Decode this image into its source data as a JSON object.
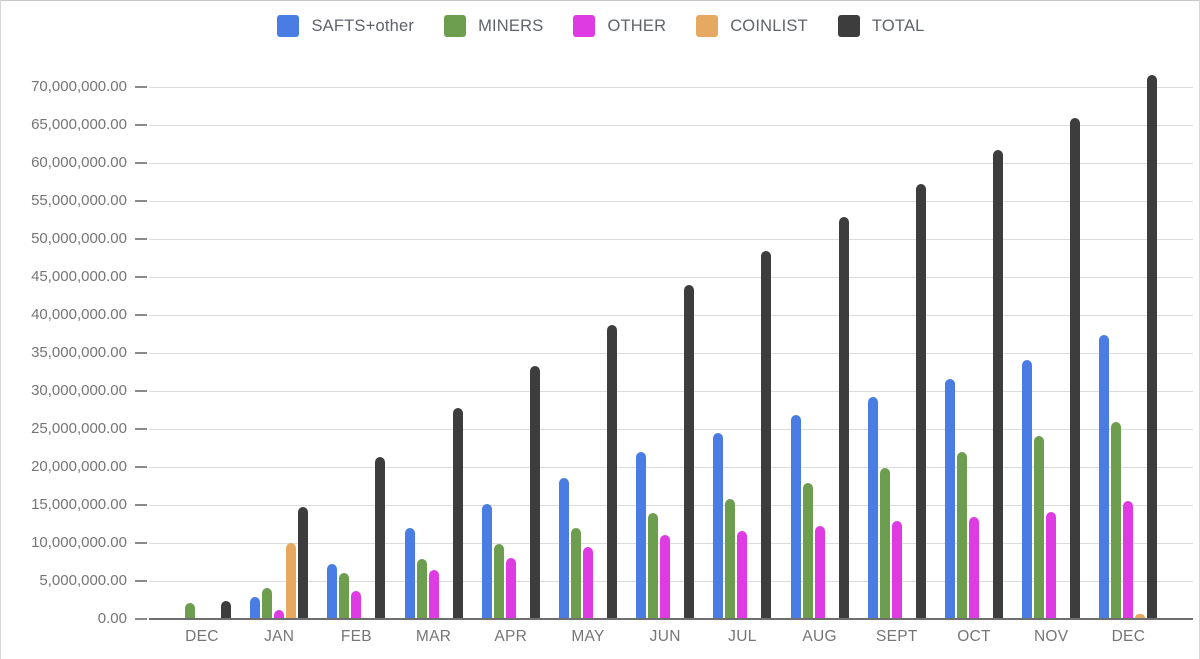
{
  "chart_data": {
    "type": "bar",
    "title": "",
    "xlabel": "",
    "ylabel": "",
    "grid": true,
    "legend_position": "top",
    "ylim": [
      0,
      70000000
    ],
    "ytick_step": 5000000,
    "ytick_labels": [
      "0.00",
      "5,000,000.00",
      "10,000,000.00",
      "15,000,000.00",
      "20,000,000.00",
      "25,000,000.00",
      "30,000,000.00",
      "35,000,000.00",
      "40,000,000.00",
      "45,000,000.00",
      "50,000,000.00",
      "55,000,000.00",
      "60,000,000.00",
      "65,000,000.00",
      "70,000,000.00"
    ],
    "categories": [
      "DEC",
      "JAN",
      "FEB",
      "MAR",
      "APR",
      "MAY",
      "JUN",
      "JUL",
      "AUG",
      "SEPT",
      "OCT",
      "NOV",
      "DEC"
    ],
    "series": [
      {
        "name": "SAFTS+other",
        "color": "#4a7de4",
        "values": [
          0,
          2700000,
          7100000,
          11800000,
          15000000,
          18400000,
          21800000,
          24300000,
          26700000,
          29100000,
          31500000,
          34000000,
          37200000
        ]
      },
      {
        "name": "MINERS",
        "color": "#6d9e50",
        "values": [
          2000000,
          3900000,
          5900000,
          7700000,
          9800000,
          11800000,
          13800000,
          15700000,
          17800000,
          19800000,
          21900000,
          23900000,
          25800000
        ]
      },
      {
        "name": "OTHER",
        "color": "#de3be2",
        "values": [
          0,
          1000000,
          3500000,
          6300000,
          7900000,
          9400000,
          10900000,
          11500000,
          12100000,
          12800000,
          13300000,
          13900000,
          15400000
        ]
      },
      {
        "name": "COINLIST",
        "color": "#e5a961",
        "values": [
          0,
          9900000,
          0,
          0,
          0,
          0,
          0,
          0,
          0,
          0,
          0,
          0,
          500000
        ]
      },
      {
        "name": "TOTAL",
        "color": "#3d3d3d",
        "values": [
          2200000,
          14600000,
          21200000,
          27600000,
          33100000,
          38600000,
          43800000,
          48300000,
          52700000,
          57100000,
          61600000,
          65800000,
          71500000
        ]
      }
    ]
  },
  "colors": {
    "background": "#ffffff",
    "gridline": "#dcdcdc",
    "baseline": "#6f6f6f",
    "axis_text": "#757575",
    "legend_text": "#5f6368"
  }
}
